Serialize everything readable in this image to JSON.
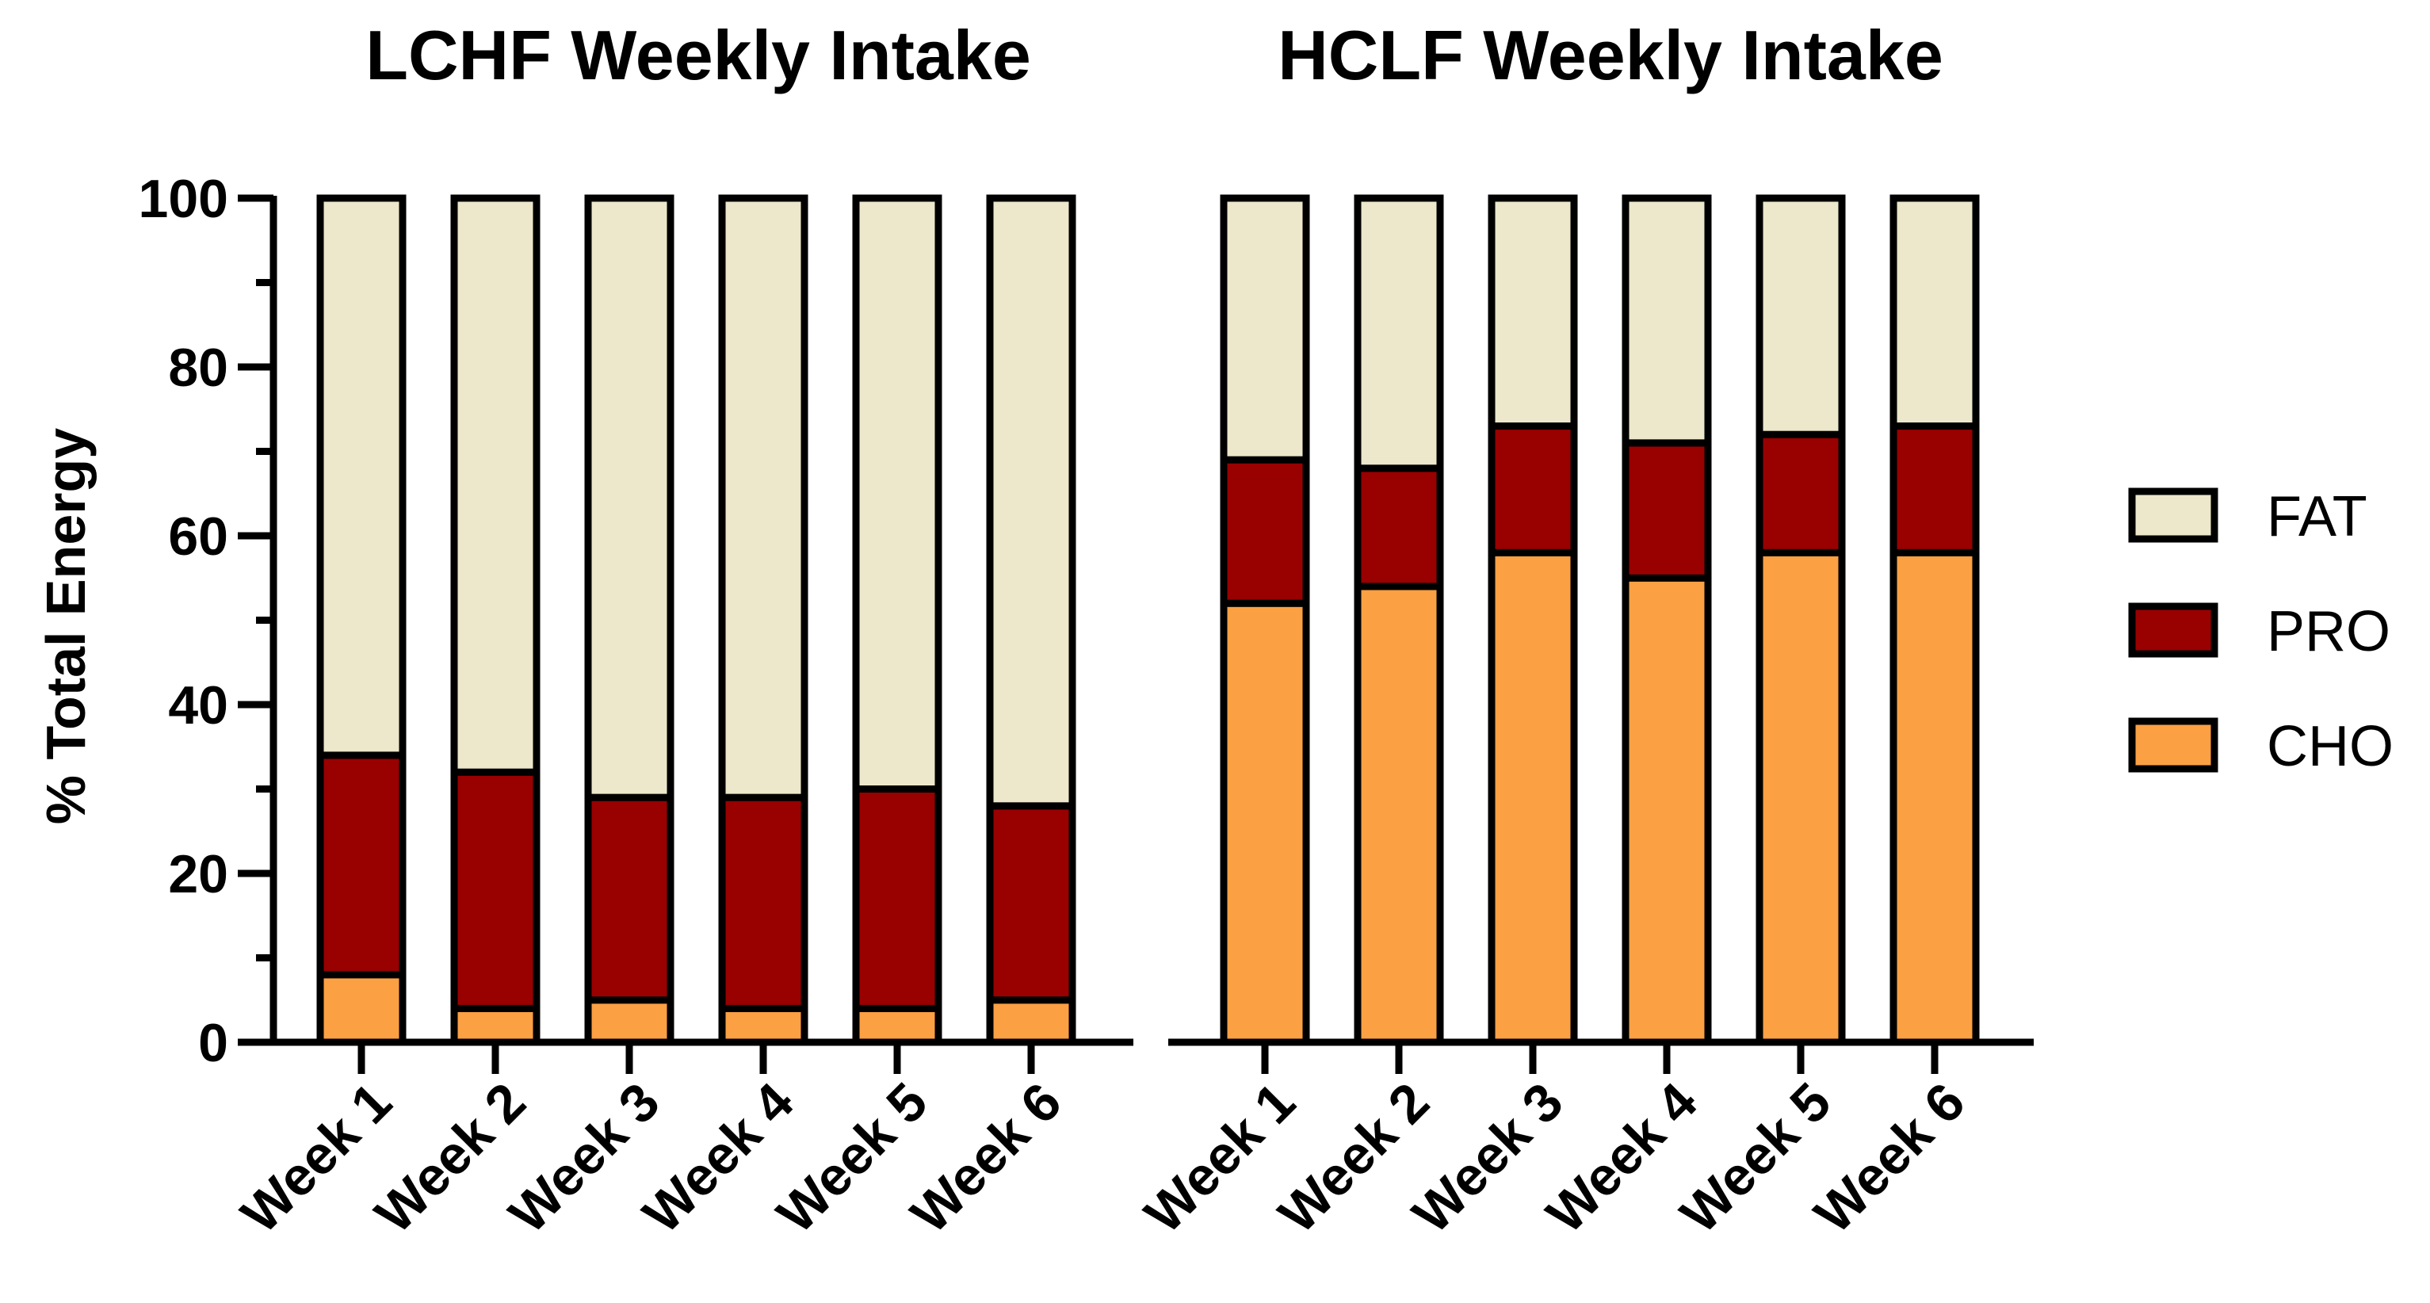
{
  "colors": {
    "FAT": "#EDE7CB",
    "PRO": "#990000",
    "CHO": "#FBA043",
    "outline": "#000000"
  },
  "legend": {
    "entries": [
      "FAT",
      "PRO",
      "CHO"
    ]
  },
  "chart_data": [
    {
      "type": "bar",
      "stacked": true,
      "title": "LCHF Weekly Intake",
      "ylabel": "% Total Energy",
      "xlabel": "",
      "ylim": [
        0,
        100
      ],
      "yticks": [
        "0",
        "20",
        "40",
        "60",
        "80",
        "100"
      ],
      "categories": [
        "Week 1",
        "Week 2",
        "Week 3",
        "Week 4",
        "Week 5",
        "Week 6"
      ],
      "series": [
        {
          "name": "CHO",
          "values": [
            8,
            4,
            5,
            4,
            4,
            5
          ]
        },
        {
          "name": "PRO",
          "values": [
            26,
            28,
            24,
            25,
            26,
            23
          ]
        },
        {
          "name": "FAT",
          "values": [
            66,
            68,
            71,
            71,
            70,
            72
          ]
        }
      ]
    },
    {
      "type": "bar",
      "stacked": true,
      "title": "HCLF Weekly Intake",
      "ylabel": "",
      "xlabel": "",
      "ylim": [
        0,
        100
      ],
      "categories": [
        "Week 1",
        "Week 2",
        "Week 3",
        "Week 4",
        "Week 5",
        "Week 6"
      ],
      "series": [
        {
          "name": "CHO",
          "values": [
            52,
            54,
            58,
            55,
            58,
            58
          ]
        },
        {
          "name": "PRO",
          "values": [
            17,
            14,
            15,
            16,
            14,
            15
          ]
        },
        {
          "name": "FAT",
          "values": [
            31,
            32,
            27,
            29,
            28,
            27
          ]
        }
      ]
    }
  ]
}
